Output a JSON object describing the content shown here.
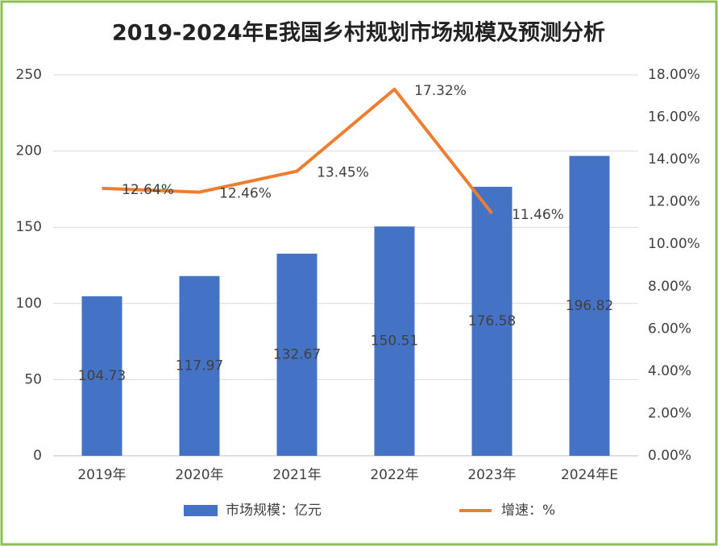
{
  "chart_data": {
    "type": "bar",
    "title": "2019-2024年E我国乡村规划市场规模及预测分析",
    "categories": [
      "2019年",
      "2020年",
      "2021年",
      "2022年",
      "2023年",
      "2024年E"
    ],
    "series": [
      {
        "name": "市场规模：亿元",
        "type": "bar",
        "color": "#4472c4",
        "values": [
          104.73,
          117.97,
          132.67,
          150.51,
          176.58,
          196.82
        ]
      },
      {
        "name": "增速：%",
        "type": "line",
        "axis": "y2",
        "color": "#ed7d31",
        "values": [
          12.64,
          12.46,
          13.45,
          17.32,
          11.46,
          null
        ],
        "value_labels": [
          "12.64%",
          "12.46%",
          "13.45%",
          "17.32%",
          "11.46%",
          null
        ]
      }
    ],
    "ylim": [
      0,
      250
    ],
    "yticks": [
      0,
      50,
      100,
      150,
      200,
      250
    ],
    "y2lim": [
      0,
      18
    ],
    "y2ticks": [
      {
        "value": 0,
        "label": "0.00%"
      },
      {
        "value": 2,
        "label": "2.00%"
      },
      {
        "value": 4,
        "label": "4.00%"
      },
      {
        "value": 6,
        "label": "6.00%"
      },
      {
        "value": 8,
        "label": "8.00%"
      },
      {
        "value": 10,
        "label": "10.00%"
      },
      {
        "value": 12,
        "label": "12.00%"
      },
      {
        "value": 14,
        "label": "14.00%"
      },
      {
        "value": 16,
        "label": "16.00%"
      },
      {
        "value": 18,
        "label": "18.00%"
      }
    ],
    "grid": true,
    "legend": "bottom"
  }
}
